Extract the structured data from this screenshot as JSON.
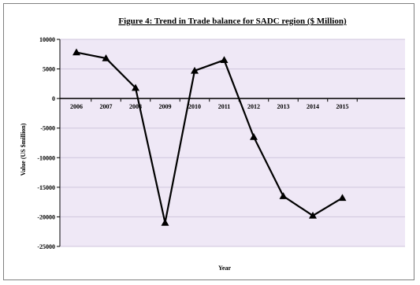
{
  "chart_data": {
    "type": "line",
    "title": "Figure 4: Trend in Trade balance for SADC region ($ Million)",
    "xlabel": "Year",
    "ylabel": "Value (US $million)",
    "categories": [
      "2006",
      "2007",
      "2008",
      "2009",
      "2010",
      "2011",
      "2012",
      "2013",
      "2014",
      "2015"
    ],
    "series": [
      {
        "values": [
          7800,
          6800,
          1800,
          -21000,
          4700,
          6500,
          -6500,
          -16500,
          -19800,
          -16800
        ]
      }
    ],
    "ylim": [
      -25000,
      10000
    ],
    "yticks": [
      10000,
      5000,
      0,
      -5000,
      -10000,
      -15000,
      -20000,
      -25000
    ],
    "ytick_labels": [
      "10000",
      "5000",
      "0",
      "-5000",
      "-10000",
      "-15000",
      "-20000",
      "-25000"
    ],
    "grid": true,
    "legend": "none",
    "marker": "triangle",
    "colors": {
      "plot_bg": "#efe8f6",
      "grid": "#cfc6dc",
      "line": "#000000",
      "title": "#1a1a66"
    }
  }
}
